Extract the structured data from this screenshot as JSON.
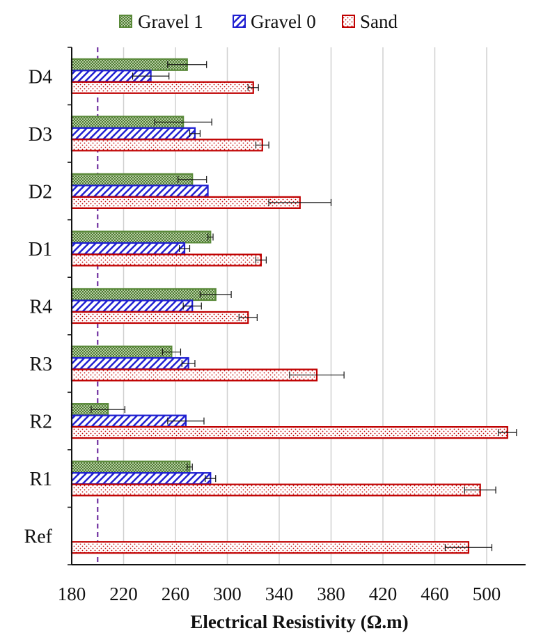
{
  "chart_data": {
    "type": "bar",
    "orientation": "horizontal",
    "xlabel": "Electrical Resistivity (Ω.m)",
    "ylabel": "",
    "xlim": [
      180,
      530
    ],
    "xticks": [
      180,
      220,
      260,
      300,
      340,
      380,
      420,
      460,
      500
    ],
    "grid": "vertical",
    "legend_position": "top",
    "reference_line": {
      "x": 200,
      "style": "dashed",
      "color": "#7030A0"
    },
    "categories": [
      "D4",
      "D3",
      "D2",
      "D1",
      "R4",
      "R3",
      "R2",
      "R1",
      "Ref"
    ],
    "series": [
      {
        "name": "Gravel 1",
        "color": "#5A8A3A",
        "pattern": "checker",
        "values": [
          269,
          266,
          273,
          287,
          291,
          257,
          208,
          271,
          null
        ],
        "errors": [
          15,
          22,
          11,
          2,
          12,
          7,
          13,
          2,
          null
        ]
      },
      {
        "name": "Gravel 0",
        "color": "#1F1FD1",
        "pattern": "diagonal",
        "values": [
          241,
          275,
          285,
          267,
          273,
          270,
          268,
          287,
          null
        ],
        "errors": [
          14,
          4,
          0,
          4,
          7,
          5,
          14,
          4,
          null
        ]
      },
      {
        "name": "Sand",
        "color": "#C00000",
        "pattern": "dots",
        "values": [
          320,
          327,
          356,
          326,
          316,
          369,
          516,
          495,
          486
        ],
        "errors": [
          4,
          5,
          24,
          4,
          7,
          21,
          7,
          12,
          18
        ]
      }
    ]
  }
}
